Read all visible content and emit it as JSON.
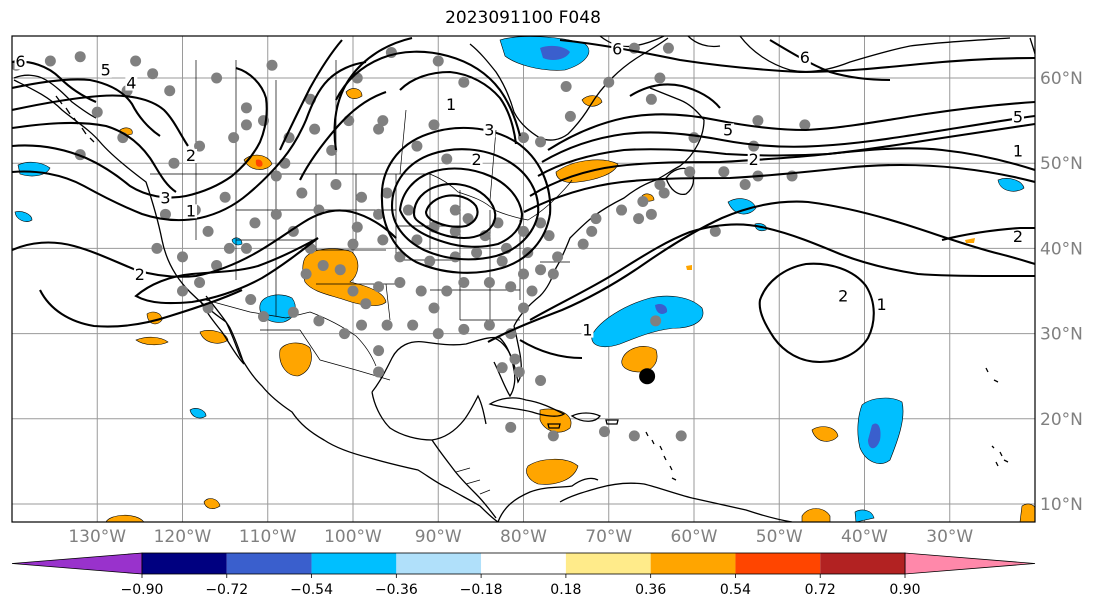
{
  "title": "2023091100 F048",
  "map": {
    "lon_range": [
      -140,
      -20
    ],
    "lat_range": [
      8,
      65
    ],
    "lat_labels": [
      "10°N",
      "20°N",
      "30°N",
      "40°N",
      "50°N",
      "60°N"
    ],
    "lat_values": [
      10,
      20,
      30,
      40,
      50,
      60
    ],
    "lon_labels": [
      "130°W",
      "120°W",
      "110°W",
      "100°W",
      "90°W",
      "80°W",
      "70°W",
      "60°W",
      "50°W",
      "40°W",
      "30°W"
    ],
    "lon_values": [
      -130,
      -120,
      -110,
      -100,
      -90,
      -80,
      -70,
      -60,
      -50,
      -40,
      -30
    ],
    "contour_labels": [
      {
        "text": "6",
        "lon": -139,
        "lat": 61.5
      },
      {
        "text": "5",
        "lon": -129,
        "lat": 60.5
      },
      {
        "text": "4",
        "lon": -126,
        "lat": 59
      },
      {
        "text": "3",
        "lon": -122,
        "lat": 45.5
      },
      {
        "text": "2",
        "lon": -119,
        "lat": 50.5
      },
      {
        "text": "1",
        "lon": -119,
        "lat": 44
      },
      {
        "text": "2",
        "lon": -125,
        "lat": 36.5
      },
      {
        "text": "3",
        "lon": -84,
        "lat": 53.5
      },
      {
        "text": "2",
        "lon": -85.5,
        "lat": 50
      },
      {
        "text": "1",
        "lon": -88.5,
        "lat": 56.5
      },
      {
        "text": "6",
        "lon": -69,
        "lat": 63
      },
      {
        "text": "5",
        "lon": -56,
        "lat": 53.5
      },
      {
        "text": "2",
        "lon": -53,
        "lat": 50
      },
      {
        "text": "1",
        "lon": -72.5,
        "lat": 30
      },
      {
        "text": "2",
        "lon": -42.5,
        "lat": 34
      },
      {
        "text": "1",
        "lon": -38,
        "lat": 33
      },
      {
        "text": "6",
        "lon": -47,
        "lat": 62
      },
      {
        "text": "5",
        "lon": -22,
        "lat": 55
      },
      {
        "text": "1",
        "lon": -22,
        "lat": 51
      },
      {
        "text": "2",
        "lon": -22,
        "lat": 41
      }
    ],
    "storm_center": {
      "lon": -65.5,
      "lat": 25
    },
    "stations": [
      [
        -139.5,
        61.5
      ],
      [
        -135.5,
        62
      ],
      [
        -132,
        62.5
      ],
      [
        -125.5,
        62
      ],
      [
        -123.5,
        60.5
      ],
      [
        -121.5,
        58.5
      ],
      [
        -116,
        60
      ],
      [
        -109.5,
        61.5
      ],
      [
        -105,
        57.5
      ],
      [
        -99.5,
        60
      ],
      [
        -95.5,
        63
      ],
      [
        -90,
        62
      ],
      [
        -87,
        59.5
      ],
      [
        -90.5,
        54.5
      ],
      [
        -97,
        54
      ],
      [
        -102.5,
        51.5
      ],
      [
        -110.5,
        55
      ],
      [
        -112.5,
        54.5
      ],
      [
        -107.5,
        53
      ],
      [
        -104.5,
        54
      ],
      [
        -100.5,
        55
      ],
      [
        -96.5,
        55
      ],
      [
        -92.5,
        52
      ],
      [
        -89,
        50.5
      ],
      [
        -80,
        53
      ],
      [
        -78,
        52.5
      ],
      [
        -74.5,
        55.5
      ],
      [
        -75,
        59
      ],
      [
        -70,
        59.5
      ],
      [
        -67,
        63.5
      ],
      [
        -63,
        63.5
      ],
      [
        -64,
        60
      ],
      [
        -65,
        57.5
      ],
      [
        -60,
        53
      ],
      [
        -56.5,
        49
      ],
      [
        -54,
        47.5
      ],
      [
        -53,
        52
      ],
      [
        -60.5,
        49
      ],
      [
        -64,
        47.5
      ],
      [
        -66,
        45.5
      ],
      [
        -65,
        44
      ],
      [
        -63.5,
        46.5
      ],
      [
        -66.5,
        43.5
      ],
      [
        -68.5,
        44.5
      ],
      [
        -71.5,
        43.5
      ],
      [
        -72,
        42
      ],
      [
        -73,
        40.5
      ],
      [
        -76,
        39
      ],
      [
        -77,
        41.5
      ],
      [
        -78,
        43
      ],
      [
        -80,
        42
      ],
      [
        -79.5,
        39.5
      ],
      [
        -82,
        40
      ],
      [
        -84.5,
        41.5
      ],
      [
        -83,
        43
      ],
      [
        -86.5,
        43.5
      ],
      [
        -88,
        44.5
      ],
      [
        -88,
        42
      ],
      [
        -90.5,
        42.5
      ],
      [
        -92.5,
        41
      ],
      [
        -93.5,
        44.5
      ],
      [
        -96,
        46.5
      ],
      [
        -97,
        44
      ],
      [
        -99.5,
        42.5
      ],
      [
        -99,
        46
      ],
      [
        -102,
        47.5
      ],
      [
        -104,
        44.5
      ],
      [
        -100,
        40.5
      ],
      [
        -96.5,
        41
      ],
      [
        -94.5,
        39
      ],
      [
        -91,
        38.5
      ],
      [
        -88,
        39
      ],
      [
        -85.5,
        39.5
      ],
      [
        -82.5,
        38.5
      ],
      [
        -80,
        37
      ],
      [
        -78,
        37.5
      ],
      [
        -76.5,
        37
      ],
      [
        -79,
        35
      ],
      [
        -81.5,
        35.5
      ],
      [
        -84,
        36
      ],
      [
        -87,
        36
      ],
      [
        -89,
        35
      ],
      [
        -90.5,
        33
      ],
      [
        -92,
        35
      ],
      [
        -94.5,
        36
      ],
      [
        -97,
        35.5
      ],
      [
        -98.5,
        33.5
      ],
      [
        -100,
        35
      ],
      [
        -101.5,
        37.5
      ],
      [
        -103.5,
        38
      ],
      [
        -105.5,
        37
      ],
      [
        -105,
        40
      ],
      [
        -107,
        42
      ],
      [
        -109,
        44
      ],
      [
        -111.5,
        43
      ],
      [
        -112.5,
        40
      ],
      [
        -114.5,
        40
      ],
      [
        -116,
        38
      ],
      [
        -117,
        42
      ],
      [
        -118.5,
        44.5
      ],
      [
        -122,
        44
      ],
      [
        -123,
        40
      ],
      [
        -120,
        39
      ],
      [
        -118,
        36
      ],
      [
        -117,
        33
      ],
      [
        -120,
        35
      ],
      [
        -112,
        34
      ],
      [
        -110.5,
        32
      ],
      [
        -107,
        32.5
      ],
      [
        -104,
        31.5
      ],
      [
        -101,
        30
      ],
      [
        -97,
        28
      ],
      [
        -97,
        25.5
      ],
      [
        -99,
        31
      ],
      [
        -96,
        31
      ],
      [
        -93,
        31
      ],
      [
        -90,
        30
      ],
      [
        -87,
        30.5
      ],
      [
        -84,
        31
      ],
      [
        -81.5,
        30
      ],
      [
        -80,
        33
      ],
      [
        -81,
        27
      ],
      [
        -82.5,
        26
      ],
      [
        -80.5,
        25.5
      ],
      [
        -78,
        24.5
      ],
      [
        -81.5,
        19
      ],
      [
        -76.5,
        18
      ],
      [
        -67,
        18
      ],
      [
        -70.5,
        18.5
      ],
      [
        -61.5,
        18
      ],
      [
        -64.5,
        31.5
      ],
      [
        -57.5,
        42
      ],
      [
        -52.5,
        48.5
      ],
      [
        -48.5,
        48.5
      ],
      [
        -47,
        54.5
      ],
      [
        -52.5,
        55
      ],
      [
        -56,
        54
      ],
      [
        -112.5,
        56.5
      ],
      [
        -114,
        53
      ],
      [
        -115,
        46
      ],
      [
        -118,
        52
      ],
      [
        -108,
        50
      ],
      [
        -109,
        48.5
      ],
      [
        -106,
        46.5
      ],
      [
        -121,
        50
      ],
      [
        -127,
        53
      ],
      [
        -132,
        51
      ],
      [
        -130,
        56
      ],
      [
        -126.5,
        58.5
      ]
    ]
  },
  "colorbar": {
    "labels": [
      "−0.90",
      "−0.72",
      "−0.54",
      "−0.36",
      "−0.18",
      "0.18",
      "0.36",
      "0.54",
      "0.72",
      "0.90"
    ],
    "colors": [
      "#8a2be2",
      "#000080",
      "#3a5fcd",
      "#00bfff",
      "#b0e0fa",
      "#ffffff",
      "#ffeb8a",
      "#ffa500",
      "#ff4500",
      "#b22222",
      "#ff88aa"
    ],
    "under_color": "#9932cc",
    "over_color": "#ff88aa"
  }
}
